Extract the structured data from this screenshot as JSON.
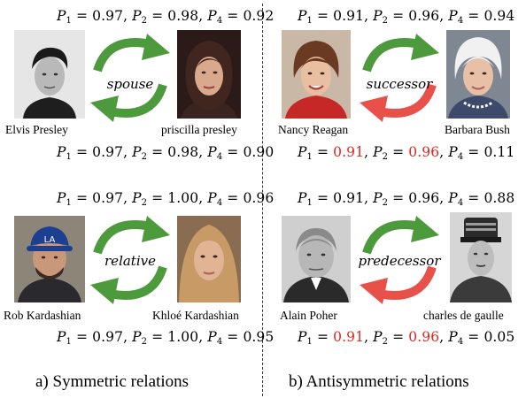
{
  "panels": [
    {
      "caption": "a) Symmetric relations",
      "examples": [
        {
          "relation": "spouse",
          "head": "Elvis Presley",
          "tail": "priscilla presley",
          "scores_top": [
            "0.97",
            "0.98",
            "0.92"
          ],
          "scores_bottom": [
            "0.97",
            "0.98",
            "0.90"
          ],
          "bottom_arrow_color": "#4c9a3c"
        },
        {
          "relation": "relative",
          "head": "Rob Kardashian",
          "tail": "Khloé Kardashian",
          "scores_top": [
            "0.97",
            "1.00",
            "0.96"
          ],
          "scores_bottom": [
            "0.97",
            "1.00",
            "0.95"
          ],
          "bottom_arrow_color": "#4c9a3c"
        }
      ]
    },
    {
      "caption": "b) Antisymmetric relations",
      "examples": [
        {
          "relation": "successor",
          "head": "Nancy Reagan",
          "tail": "Barbara Bush",
          "scores_top": [
            "0.91",
            "0.96",
            "0.94"
          ],
          "scores_bottom": [
            "0.91",
            "0.96",
            "0.11"
          ],
          "bottom_arrow_color": "#e8514a"
        },
        {
          "relation": "predecessor",
          "head": "Alain Poher",
          "tail": "charles de gaulle",
          "scores_top": [
            "0.91",
            "0.96",
            "0.88"
          ],
          "scores_bottom": [
            "0.91",
            "0.96",
            "0.05"
          ],
          "bottom_arrow_color": "#e8514a"
        }
      ]
    }
  ],
  "colors": {
    "green": "#4c9a3c",
    "red": "#e8514a",
    "highlight": "#e0261d"
  }
}
